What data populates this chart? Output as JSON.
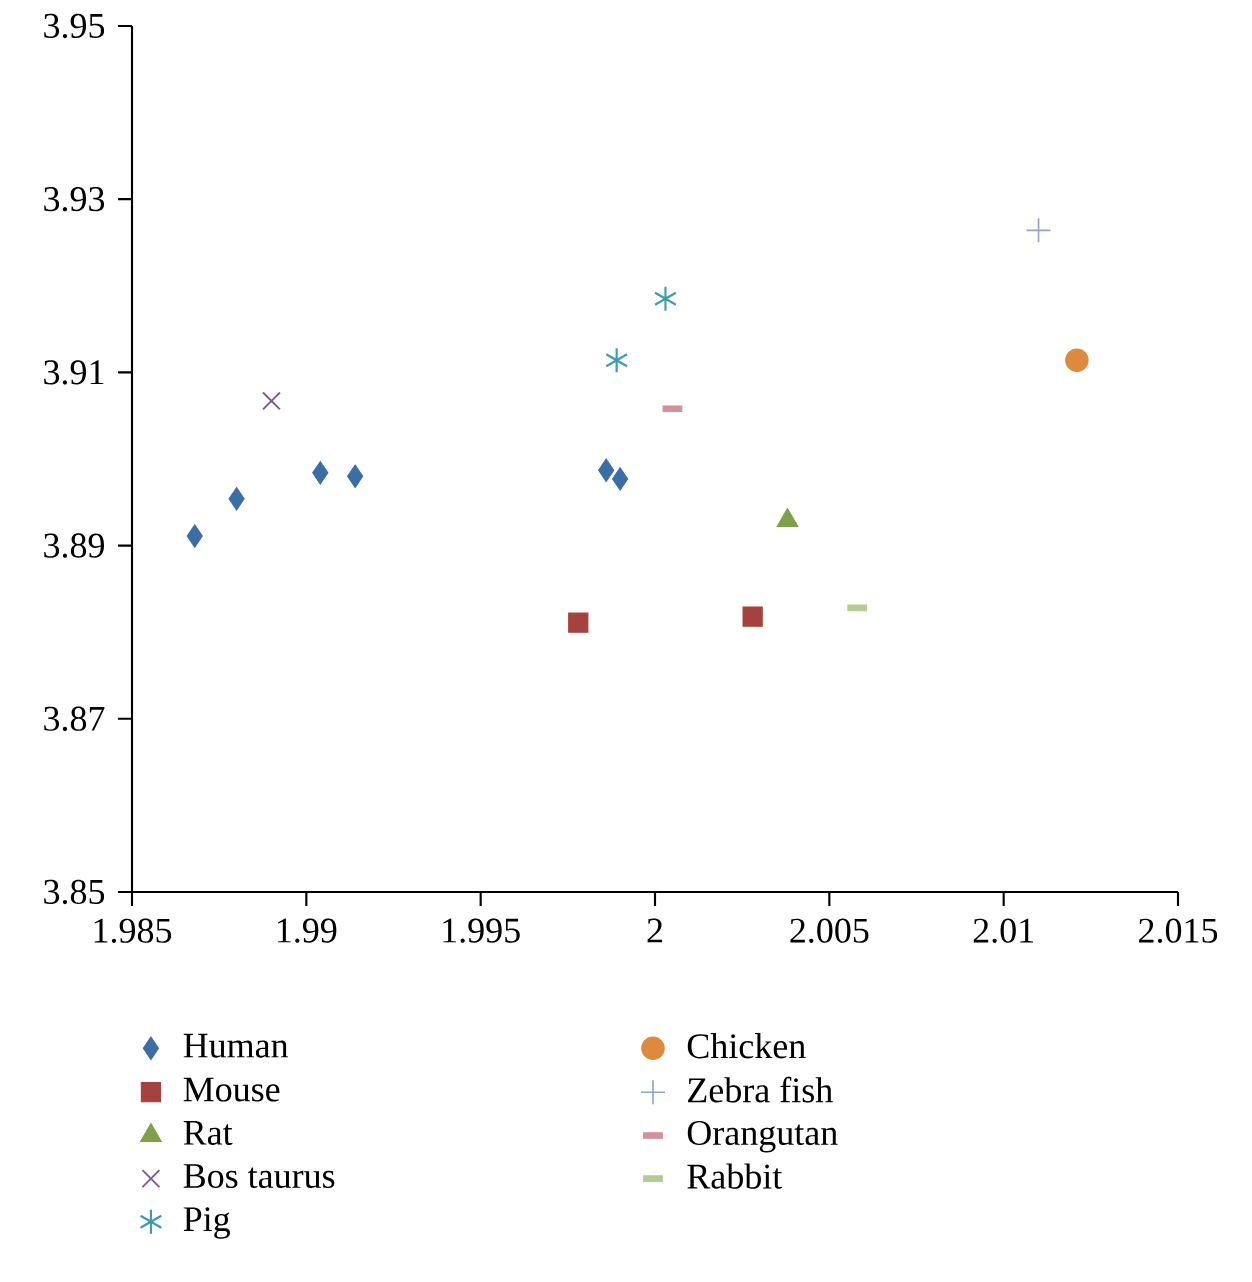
{
  "chart_data": {
    "type": "scatter",
    "xlim": [
      1.985,
      2.015
    ],
    "xticks": [
      1.985,
      1.99,
      1.995,
      2,
      2.005,
      2.01,
      2.015
    ],
    "ylim": [
      3.85,
      3.95
    ],
    "yticks": [
      3.85,
      3.87,
      3.89,
      3.91,
      3.93,
      3.95
    ],
    "grid": false,
    "legend": "bottom",
    "series": [
      {
        "name": "Human",
        "color": "#3a6ea5",
        "marker": "diamond",
        "x": [
          1.9868,
          1.988,
          1.9904,
          1.9914,
          1.9986,
          1.999
        ],
        "values": [
          3.8911,
          3.8954,
          3.8984,
          3.898,
          3.8987,
          3.8977
        ]
      },
      {
        "name": "Mouse",
        "color": "#a5423e",
        "marker": "square",
        "x": [
          1.9978,
          2.0028
        ],
        "values": [
          3.8811,
          3.8818
        ]
      },
      {
        "name": "Rat",
        "color": "#7fa04a",
        "marker": "triangle",
        "x": [
          2.0038
        ],
        "values": [
          3.8929
        ]
      },
      {
        "name": "Bos taurus",
        "color": "#7b5a9c",
        "marker": "x",
        "x": [
          1.989
        ],
        "values": [
          3.9067
        ]
      },
      {
        "name": "Pig",
        "color": "#3d9bb0",
        "marker": "cross",
        "x": [
          1.9989,
          2.0003
        ],
        "values": [
          3.9114,
          3.9185
        ]
      },
      {
        "name": "Chicken",
        "color": "#dd8a3e",
        "marker": "circle",
        "x": [
          2.0121
        ],
        "values": [
          3.9114
        ]
      },
      {
        "name": "Zebra fish",
        "color": "#8fa3cf",
        "marker": "plus",
        "x": [
          2.011
        ],
        "values": [
          3.9264
        ]
      },
      {
        "name": "Orangutan",
        "color": "#d4909a",
        "x": [
          2.0005
        ],
        "values": [
          3.9058
        ]
      },
      {
        "name": "Rabbit",
        "color": "#b3cc94",
        "x": [
          2.0058
        ],
        "values": [
          3.8828
        ]
      }
    ]
  }
}
